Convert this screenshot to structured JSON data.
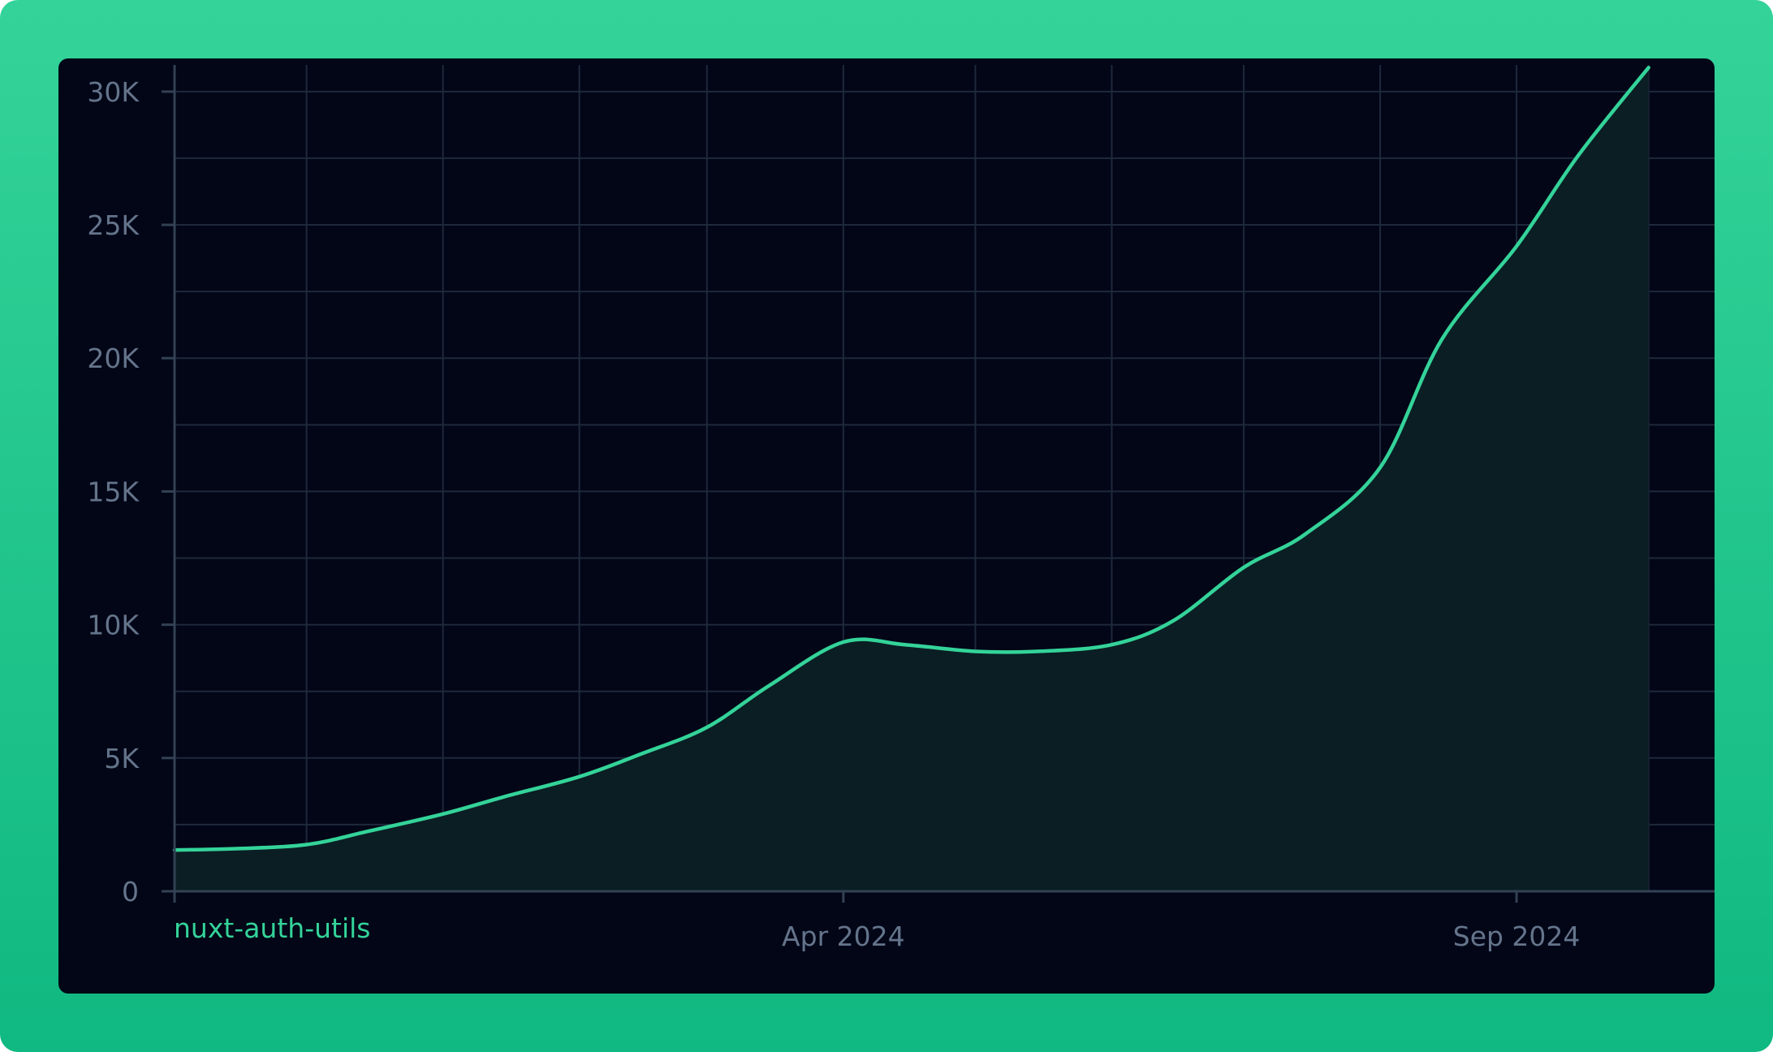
{
  "colors": {
    "frame_top": "#34d399",
    "frame_bottom": "#10b981",
    "panel_background": "#020617",
    "grid": "#1e293b",
    "axis": "#334155",
    "tick_text": "#64748b",
    "series_line": "#34d399",
    "series_fill": "#0a1e24"
  },
  "chart_data": {
    "type": "area",
    "x_axis": {
      "type": "time",
      "range": [
        "2023-11-01",
        "2024-10-16"
      ],
      "tick_labels": [
        {
          "date": "2024-04-01",
          "label": "Apr 2024"
        },
        {
          "date": "2024-09-01",
          "label": "Sep 2024"
        }
      ]
    },
    "y_axis": {
      "range": [
        0,
        31000
      ],
      "ticks": [
        {
          "value": 0,
          "label": "0"
        },
        {
          "value": 5000,
          "label": "5K"
        },
        {
          "value": 10000,
          "label": "10K"
        },
        {
          "value": 15000,
          "label": "15K"
        },
        {
          "value": 20000,
          "label": "20K"
        },
        {
          "value": 25000,
          "label": "25K"
        },
        {
          "value": 30000,
          "label": "30K"
        }
      ]
    },
    "grid": true,
    "series": [
      {
        "name": "nuxt-auth-utils",
        "points": [
          {
            "date": "2023-11-01",
            "value": 1550
          },
          {
            "date": "2023-11-15",
            "value": 1600
          },
          {
            "date": "2023-12-01",
            "value": 1750
          },
          {
            "date": "2023-12-15",
            "value": 2250
          },
          {
            "date": "2024-01-01",
            "value": 2900
          },
          {
            "date": "2024-01-15",
            "value": 3550
          },
          {
            "date": "2024-02-01",
            "value": 4300
          },
          {
            "date": "2024-02-15",
            "value": 5150
          },
          {
            "date": "2024-03-01",
            "value": 6150
          },
          {
            "date": "2024-03-15",
            "value": 7700
          },
          {
            "date": "2024-04-01",
            "value": 9350
          },
          {
            "date": "2024-04-15",
            "value": 9250
          },
          {
            "date": "2024-05-01",
            "value": 9000
          },
          {
            "date": "2024-05-15",
            "value": 9000
          },
          {
            "date": "2024-06-01",
            "value": 9250
          },
          {
            "date": "2024-06-15",
            "value": 10150
          },
          {
            "date": "2024-07-01",
            "value": 12150
          },
          {
            "date": "2024-07-15",
            "value": 13400
          },
          {
            "date": "2024-08-01",
            "value": 15900
          },
          {
            "date": "2024-08-15",
            "value": 20700
          },
          {
            "date": "2024-09-01",
            "value": 24200
          },
          {
            "date": "2024-09-15",
            "value": 27600
          },
          {
            "date": "2024-10-01",
            "value": 30900
          }
        ]
      }
    ]
  }
}
